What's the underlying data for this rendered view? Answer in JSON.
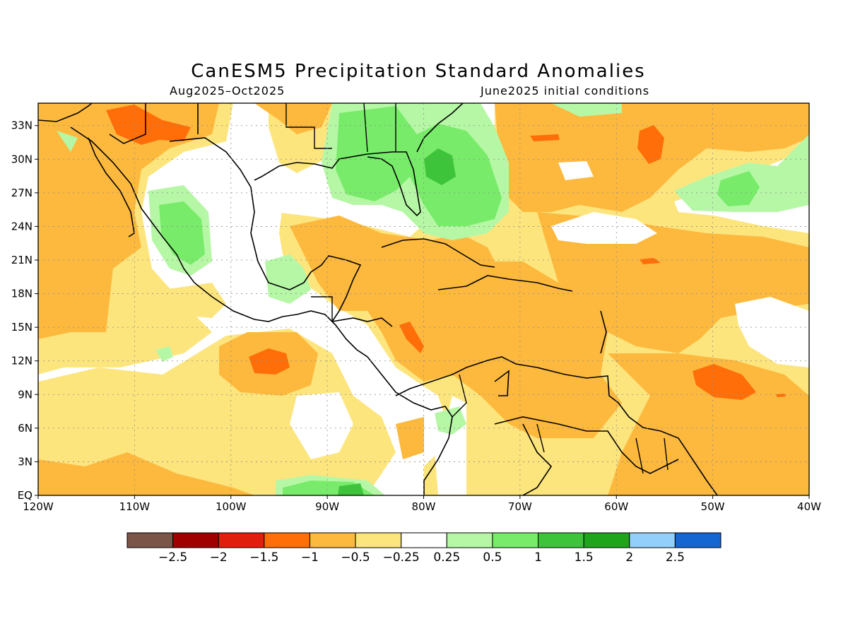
{
  "title": "CanESM5 Precipitation Standard Anomalies",
  "subtitle_left": "Aug2025–Oct2025",
  "subtitle_right": "June2025 initial conditions",
  "x_ticks": [
    "120W",
    "110W",
    "100W",
    "90W",
    "80W",
    "70W",
    "60W",
    "50W",
    "40W"
  ],
  "y_ticks": [
    "EQ",
    "3N",
    "6N",
    "9N",
    "12N",
    "15N",
    "18N",
    "21N",
    "24N",
    "27N",
    "30N",
    "33N"
  ],
  "colorbar": {
    "labels": [
      "−2.5",
      "−2",
      "−1.5",
      "−1",
      "−0.5",
      "−0.25",
      "0.25",
      "0.5",
      "1",
      "1.5",
      "2",
      "2.5"
    ],
    "colors": [
      "#7a5548",
      "#a00000",
      "#e0200c",
      "#ff6e08",
      "#fdb93e",
      "#fde57e",
      "#ffffff",
      "#b6f7a6",
      "#78ec6a",
      "#3ec43a",
      "#1fa51c",
      "#92d0fb",
      "#1565d2"
    ]
  },
  "chart_data": {
    "type": "heatmap",
    "title": "CanESM5 Precipitation Standard Anomalies",
    "lon_range": [
      -120,
      -40
    ],
    "lat_range": [
      0,
      35
    ],
    "units": "standard anomaly",
    "regions": [
      {
        "area": "Northern Mexico / US Southwest",
        "level": "-1.5 to -1"
      },
      {
        "area": "Eastern Gulf of Mexico / Florida",
        "level": "0.5 to 1.5"
      },
      {
        "area": "Southern Mexico Pacific coast",
        "level": "0.5 to 1"
      },
      {
        "area": "Caribbean Sea",
        "level": "-1 to -0.5"
      },
      {
        "area": "Eastern Pacific near 12N 97W",
        "level": "-1.5 to -1"
      },
      {
        "area": "Central Atlantic near 30N 57W",
        "level": "-1.5 to -1"
      },
      {
        "area": "Tropical Atlantic near 10N 47W",
        "level": "-1.5 to -1"
      },
      {
        "area": "Atlantic near 27N 48W",
        "level": "0.5 to 1"
      }
    ]
  }
}
